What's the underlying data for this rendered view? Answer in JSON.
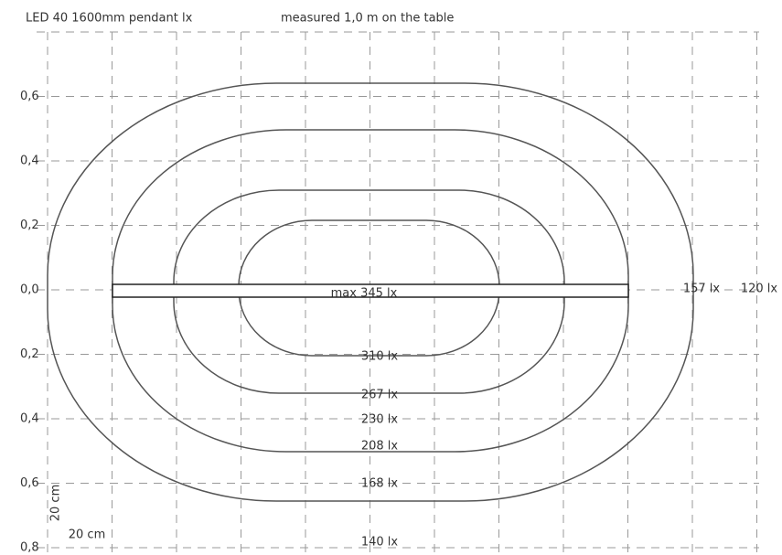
{
  "header": {
    "title": "LED 40   1600mm pendant lx",
    "subtitle": "measured 1,0 m on the table"
  },
  "y_labels": [
    "0,6",
    "0,4",
    "0,2",
    "0,0",
    "0,2",
    "0,4",
    "0,6",
    "0,8"
  ],
  "contour_labels": [
    "max 345 lx",
    "310 lx",
    "267 lx",
    "230 lx",
    "208 lx",
    "168 lx",
    "140 lx",
    "157 lx",
    "120 lx"
  ],
  "scale": {
    "vertical": "20 cm",
    "horizontal": "20 cm"
  }
}
